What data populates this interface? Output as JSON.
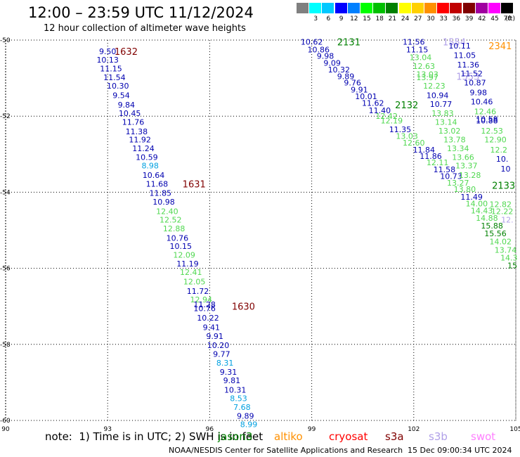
{
  "title": "12:00 – 23:59 UTC 11/12/2024",
  "subtitle": "12 hour collection of altimeter wave heights",
  "color_scale": {
    "unit": "(ft)",
    "bins": [
      {
        "label": "",
        "color": "#808080"
      },
      {
        "label": "3",
        "color": "#00ffff"
      },
      {
        "label": "6",
        "color": "#00c8ff"
      },
      {
        "label": "9",
        "color": "#0000ff"
      },
      {
        "label": "12",
        "color": "#0080ff"
      },
      {
        "label": "15",
        "color": "#00ff00"
      },
      {
        "label": "18",
        "color": "#00c000"
      },
      {
        "label": "21",
        "color": "#008000"
      },
      {
        "label": "24",
        "color": "#ffff00"
      },
      {
        "label": "27",
        "color": "#ffd000"
      },
      {
        "label": "30",
        "color": "#ff9000"
      },
      {
        "label": "33",
        "color": "#ff0000"
      },
      {
        "label": "36",
        "color": "#c00000"
      },
      {
        "label": "39",
        "color": "#800000"
      },
      {
        "label": "42",
        "color": "#a000a0"
      },
      {
        "label": "45",
        "color": "#ff00ff"
      },
      {
        "label": "70",
        "color": "#000000"
      }
    ]
  },
  "axes": {
    "x_ticks": [
      "90",
      "93",
      "96",
      "99",
      "102",
      "105"
    ],
    "y_ticks": [
      "-50",
      "-52",
      "-54",
      "-56",
      "-58",
      "-60"
    ]
  },
  "tracks": [
    {
      "time_label": "1632",
      "time_color": "#800000",
      "time_pos": [
        93.2,
        -50.3
      ],
      "points": [
        {
          "v": "9.50",
          "c": "#0000b0",
          "lon": 93.0,
          "lat": -50.3
        },
        {
          "v": "10.13",
          "c": "#0000b0",
          "lon": 93.0,
          "lat": -50.52
        },
        {
          "v": "11.15",
          "c": "#0000b0",
          "lon": 93.1,
          "lat": -50.75
        },
        {
          "v": "11.54",
          "c": "#0000b0",
          "lon": 93.2,
          "lat": -50.98
        },
        {
          "v": "10.30",
          "c": "#0000b0",
          "lon": 93.3,
          "lat": -51.2
        },
        {
          "v": "9.54",
          "c": "#0000b0",
          "lon": 93.4,
          "lat": -51.45
        },
        {
          "v": "9.84",
          "c": "#0000b0",
          "lon": 93.55,
          "lat": -51.7
        },
        {
          "v": "10.45",
          "c": "#0000b0",
          "lon": 93.65,
          "lat": -51.92
        },
        {
          "v": "11.76",
          "c": "#0000b0",
          "lon": 93.75,
          "lat": -52.15
        },
        {
          "v": "11.38",
          "c": "#0000b0",
          "lon": 93.85,
          "lat": -52.4
        },
        {
          "v": "11.92",
          "c": "#0000b0",
          "lon": 93.95,
          "lat": -52.62
        },
        {
          "v": "11.24",
          "c": "#0000b0",
          "lon": 94.05,
          "lat": -52.85
        },
        {
          "v": "10.59",
          "c": "#0000b0",
          "lon": 94.15,
          "lat": -53.08
        },
        {
          "v": "8.98",
          "c": "#00a0e0",
          "lon": 94.25,
          "lat": -53.3
        },
        {
          "v": "10.64",
          "c": "#0000b0",
          "lon": 94.35,
          "lat": -53.55
        },
        {
          "v": "11.68",
          "c": "#0000b0",
          "lon": 94.45,
          "lat": -53.78
        },
        {
          "v": "11.85",
          "c": "#0000b0",
          "lon": 94.55,
          "lat": -54.02
        },
        {
          "v": "10.98",
          "c": "#0000b0",
          "lon": 94.65,
          "lat": -54.25
        },
        {
          "v": "12.40",
          "c": "#50d850",
          "lon": 94.75,
          "lat": -54.5
        },
        {
          "v": "12.52",
          "c": "#50d850",
          "lon": 94.85,
          "lat": -54.72
        },
        {
          "v": "12.88",
          "c": "#50d850",
          "lon": 94.95,
          "lat": -54.95
        },
        {
          "v": "10.76",
          "c": "#0000b0",
          "lon": 95.05,
          "lat": -55.2
        },
        {
          "v": "10.15",
          "c": "#0000b0",
          "lon": 95.15,
          "lat": -55.42
        },
        {
          "v": "12.09",
          "c": "#50d850",
          "lon": 95.25,
          "lat": -55.65
        },
        {
          "v": "11.19",
          "c": "#0000b0",
          "lon": 95.35,
          "lat": -55.88
        }
      ]
    },
    {
      "time_label": "1631",
      "time_color": "#800000",
      "time_pos": [
        95.2,
        -53.78
      ],
      "points": []
    },
    {
      "time_label": "1630",
      "time_color": "#800000",
      "time_pos": [
        96.65,
        -57.0
      ],
      "points": [
        {
          "v": "12.41",
          "c": "#50d850",
          "lon": 95.45,
          "lat": -56.1
        },
        {
          "v": "12.05",
          "c": "#50d850",
          "lon": 95.55,
          "lat": -56.35
        },
        {
          "v": "11.72",
          "c": "#0000b0",
          "lon": 95.65,
          "lat": -56.6
        },
        {
          "v": "12.94",
          "c": "#50d850",
          "lon": 95.75,
          "lat": -56.82
        },
        {
          "v": "11.28",
          "c": "#0000b0",
          "lon": 95.85,
          "lat": -56.95
        },
        {
          "v": "10.76",
          "c": "#0000b0",
          "lon": 95.85,
          "lat": -57.05
        },
        {
          "v": "10.22",
          "c": "#0000b0",
          "lon": 95.95,
          "lat": -57.3
        },
        {
          "v": "9.41",
          "c": "#0000b0",
          "lon": 96.05,
          "lat": -57.55
        },
        {
          "v": "9.91",
          "c": "#0000b0",
          "lon": 96.15,
          "lat": -57.78
        },
        {
          "v": "10.20",
          "c": "#0000b0",
          "lon": 96.25,
          "lat": -58.02
        },
        {
          "v": "9.77",
          "c": "#0000b0",
          "lon": 96.35,
          "lat": -58.25
        },
        {
          "v": "8.31",
          "c": "#00a0e0",
          "lon": 96.45,
          "lat": -58.48
        },
        {
          "v": "9.31",
          "c": "#0000b0",
          "lon": 96.55,
          "lat": -58.72
        },
        {
          "v": "9.81",
          "c": "#0000b0",
          "lon": 96.65,
          "lat": -58.95
        },
        {
          "v": "10.31",
          "c": "#0000b0",
          "lon": 96.75,
          "lat": -59.2
        },
        {
          "v": "8.53",
          "c": "#00a0e0",
          "lon": 96.85,
          "lat": -59.42
        },
        {
          "v": "7.68",
          "c": "#00a0e0",
          "lon": 96.95,
          "lat": -59.65
        },
        {
          "v": "9.89",
          "c": "#0000b0",
          "lon": 97.05,
          "lat": -59.88
        },
        {
          "v": "8.99",
          "c": "#00a0e0",
          "lon": 97.15,
          "lat": -60.1
        }
      ]
    },
    {
      "time_label": "2131",
      "time_color": "#008000",
      "time_pos": [
        99.75,
        -50.05
      ],
      "points": [
        {
          "v": "10.62",
          "c": "#0000b0",
          "lon": 99.0,
          "lat": -50.05
        },
        {
          "v": "10.86",
          "c": "#0000b0",
          "lon": 99.2,
          "lat": -50.25
        },
        {
          "v": "9.98",
          "c": "#0000b0",
          "lon": 99.4,
          "lat": -50.42
        },
        {
          "v": "9.09",
          "c": "#0000b0",
          "lon": 99.6,
          "lat": -50.6
        },
        {
          "v": "10.32",
          "c": "#0000b0",
          "lon": 99.8,
          "lat": -50.78
        },
        {
          "v": "9.89",
          "c": "#0000b0",
          "lon": 100.0,
          "lat": -50.95
        },
        {
          "v": "9.76",
          "c": "#0000b0",
          "lon": 100.2,
          "lat": -51.12
        },
        {
          "v": "9.91",
          "c": "#0000b0",
          "lon": 100.4,
          "lat": -51.3
        },
        {
          "v": "10.01",
          "c": "#0000b0",
          "lon": 100.6,
          "lat": -51.48
        },
        {
          "v": "11.62",
          "c": "#0000b0",
          "lon": 100.8,
          "lat": -51.65
        },
        {
          "v": "11.40",
          "c": "#0000b0",
          "lon": 101.0,
          "lat": -51.85
        },
        {
          "v": "12.42",
          "c": "#50d850",
          "lon": 101.2,
          "lat": -52.0
        },
        {
          "v": "12.19",
          "c": "#50d850",
          "lon": 101.35,
          "lat": -52.12
        },
        {
          "v": "11.35",
          "c": "#0000b0",
          "lon": 101.6,
          "lat": -52.35
        },
        {
          "v": "13.03",
          "c": "#50d850",
          "lon": 101.8,
          "lat": -52.52
        },
        {
          "v": "12.60",
          "c": "#50d850",
          "lon": 102.0,
          "lat": -52.7
        },
        {
          "v": "11.84",
          "c": "#0000b0",
          "lon": 102.3,
          "lat": -52.88
        },
        {
          "v": "11.86",
          "c": "#0000b0",
          "lon": 102.5,
          "lat": -53.05
        },
        {
          "v": "12.11",
          "c": "#50d850",
          "lon": 102.7,
          "lat": -53.22
        },
        {
          "v": "11.58",
          "c": "#0000b0",
          "lon": 102.9,
          "lat": -53.4
        },
        {
          "v": "10.73",
          "c": "#0000b0",
          "lon": 103.1,
          "lat": -53.58
        },
        {
          "v": "13.27",
          "c": "#50d850",
          "lon": 103.3,
          "lat": -53.75
        },
        {
          "v": "13.80",
          "c": "#50d850",
          "lon": 103.5,
          "lat": -53.92
        },
        {
          "v": "11.49",
          "c": "#0000b0",
          "lon": 103.7,
          "lat": -54.12
        },
        {
          "v": "14.00",
          "c": "#50d850",
          "lon": 103.85,
          "lat": -54.3
        },
        {
          "v": "14.43",
          "c": "#50d850",
          "lon": 104.0,
          "lat": -54.48
        },
        {
          "v": "14.88",
          "c": "#50d850",
          "lon": 104.15,
          "lat": -54.68
        },
        {
          "v": "15.88",
          "c": "#008000",
          "lon": 104.3,
          "lat": -54.88
        },
        {
          "v": "15.56",
          "c": "#008000",
          "lon": 104.4,
          "lat": -55.08
        },
        {
          "v": "14.02",
          "c": "#50d850",
          "lon": 104.55,
          "lat": -55.3
        },
        {
          "v": "13.74",
          "c": "#50d850",
          "lon": 104.7,
          "lat": -55.52
        },
        {
          "v": "14.3",
          "c": "#50d850",
          "lon": 104.8,
          "lat": -55.72
        },
        {
          "v": "15",
          "c": "#008000",
          "lon": 104.9,
          "lat": -55.92
        }
      ]
    },
    {
      "time_label": "2132",
      "time_color": "#008000",
      "time_pos": [
        101.45,
        -51.7
      ],
      "points": []
    },
    {
      "time_label": "2133",
      "time_color": "#008000",
      "time_pos": [
        104.3,
        -53.82
      ],
      "points": []
    },
    {
      "time_label": "1554",
      "time_color": "#b0a0e8",
      "time_pos": [
        102.85,
        -50.05
      ],
      "points": [
        {
          "v": "13.04",
          "c": "#50d850",
          "lon": 102.2,
          "lat": -50.45
        },
        {
          "v": "12.63",
          "c": "#50d850",
          "lon": 102.3,
          "lat": -50.68
        },
        {
          "v": "13.03",
          "c": "#50d850",
          "lon": 102.4,
          "lat": -50.9
        },
        {
          "v": "13.97",
          "c": "#50d850",
          "lon": 102.4,
          "lat": -50.98
        },
        {
          "v": "12.23",
          "c": "#50d850",
          "lon": 102.6,
          "lat": -51.2
        },
        {
          "v": "13.83",
          "c": "#50d850",
          "lon": 102.85,
          "lat": -51.92
        },
        {
          "v": "13.14",
          "c": "#50d850",
          "lon": 102.95,
          "lat": -52.15
        },
        {
          "v": "13.02",
          "c": "#50d850",
          "lon": 103.05,
          "lat": -52.38
        },
        {
          "v": "13.78",
          "c": "#50d850",
          "lon": 103.2,
          "lat": -52.62
        },
        {
          "v": "13.34",
          "c": "#50d850",
          "lon": 103.3,
          "lat": -52.85
        },
        {
          "v": "13.66",
          "c": "#50d850",
          "lon": 103.45,
          "lat": -53.08
        },
        {
          "v": "13.37",
          "c": "#50d850",
          "lon": 103.55,
          "lat": -53.3
        },
        {
          "v": "13.28",
          "c": "#50d850",
          "lon": 103.65,
          "lat": -53.55
        }
      ]
    },
    {
      "time_label": "1553",
      "time_color": "#b0a0e8",
      "time_pos": [
        103.25,
        -50.95
      ],
      "points": [
        {
          "v": "10.94",
          "c": "#0000b0",
          "lon": 102.7,
          "lat": -51.45
        },
        {
          "v": "10.77",
          "c": "#0000b0",
          "lon": 102.8,
          "lat": -51.68
        }
      ]
    },
    {
      "time_label": "2341",
      "time_color": "#ff9000",
      "time_pos": [
        104.2,
        -50.15
      ],
      "points": [
        {
          "v": "11.56",
          "c": "#0000b0",
          "lon": 102.0,
          "lat": -50.05
        },
        {
          "v": "11.15",
          "c": "#0000b0",
          "lon": 102.1,
          "lat": -50.25
        },
        {
          "v": "10.11",
          "c": "#0000b0",
          "lon": 103.35,
          "lat": -50.15
        },
        {
          "v": "11.05",
          "c": "#0000b0",
          "lon": 103.5,
          "lat": -50.4
        },
        {
          "v": "11.36",
          "c": "#0000b0",
          "lon": 103.6,
          "lat": -50.65
        },
        {
          "v": "11.52",
          "c": "#0000b0",
          "lon": 103.7,
          "lat": -50.88
        },
        {
          "v": "10.87",
          "c": "#0000b0",
          "lon": 103.8,
          "lat": -51.12
        },
        {
          "v": "9.98",
          "c": "#0000b0",
          "lon": 103.9,
          "lat": -51.38
        },
        {
          "v": "10.46",
          "c": "#0000b0",
          "lon": 104.0,
          "lat": -51.62
        },
        {
          "v": "12.46",
          "c": "#50d850",
          "lon": 104.1,
          "lat": -51.88
        },
        {
          "v": "10.58",
          "c": "#0000b0",
          "lon": 104.15,
          "lat": -52.08
        },
        {
          "v": "10.88",
          "c": "#0000b0",
          "lon": 104.15,
          "lat": -52.12
        },
        {
          "v": "12.53",
          "c": "#50d850",
          "lon": 104.3,
          "lat": -52.38
        },
        {
          "v": "12.90",
          "c": "#50d850",
          "lon": 104.4,
          "lat": -52.62
        },
        {
          "v": "12.2",
          "c": "#50d850",
          "lon": 104.5,
          "lat": -52.88
        },
        {
          "v": "10.",
          "c": "#0000b0",
          "lon": 104.6,
          "lat": -53.12
        },
        {
          "v": "10",
          "c": "#0000b0",
          "lon": 104.7,
          "lat": -53.38
        },
        {
          "v": "12.82",
          "c": "#50d850",
          "lon": 104.55,
          "lat": -54.32
        },
        {
          "v": "12.22",
          "c": "#50d850",
          "lon": 104.6,
          "lat": -54.5
        },
        {
          "v": "12.",
          "c": "#b0a0e8",
          "lon": 104.75,
          "lat": -54.72
        }
      ]
    }
  ],
  "note": "note:  1) Time is in UTC; 2) SWH is in feet",
  "satellites": [
    {
      "name": "jason3",
      "color": "#008000"
    },
    {
      "name": "altiko",
      "color": "#ff9000"
    },
    {
      "name": "cryosat",
      "color": "#ff0000"
    },
    {
      "name": "s3a",
      "color": "#800000"
    },
    {
      "name": "s3b",
      "color": "#b0a0e8"
    },
    {
      "name": "swot",
      "color": "#ff80ff"
    }
  ],
  "footer": "NOAA/NESDIS Center for Satellite Applications and Research",
  "footer_time": "15 Dec 09:00:34 UTC 2024"
}
